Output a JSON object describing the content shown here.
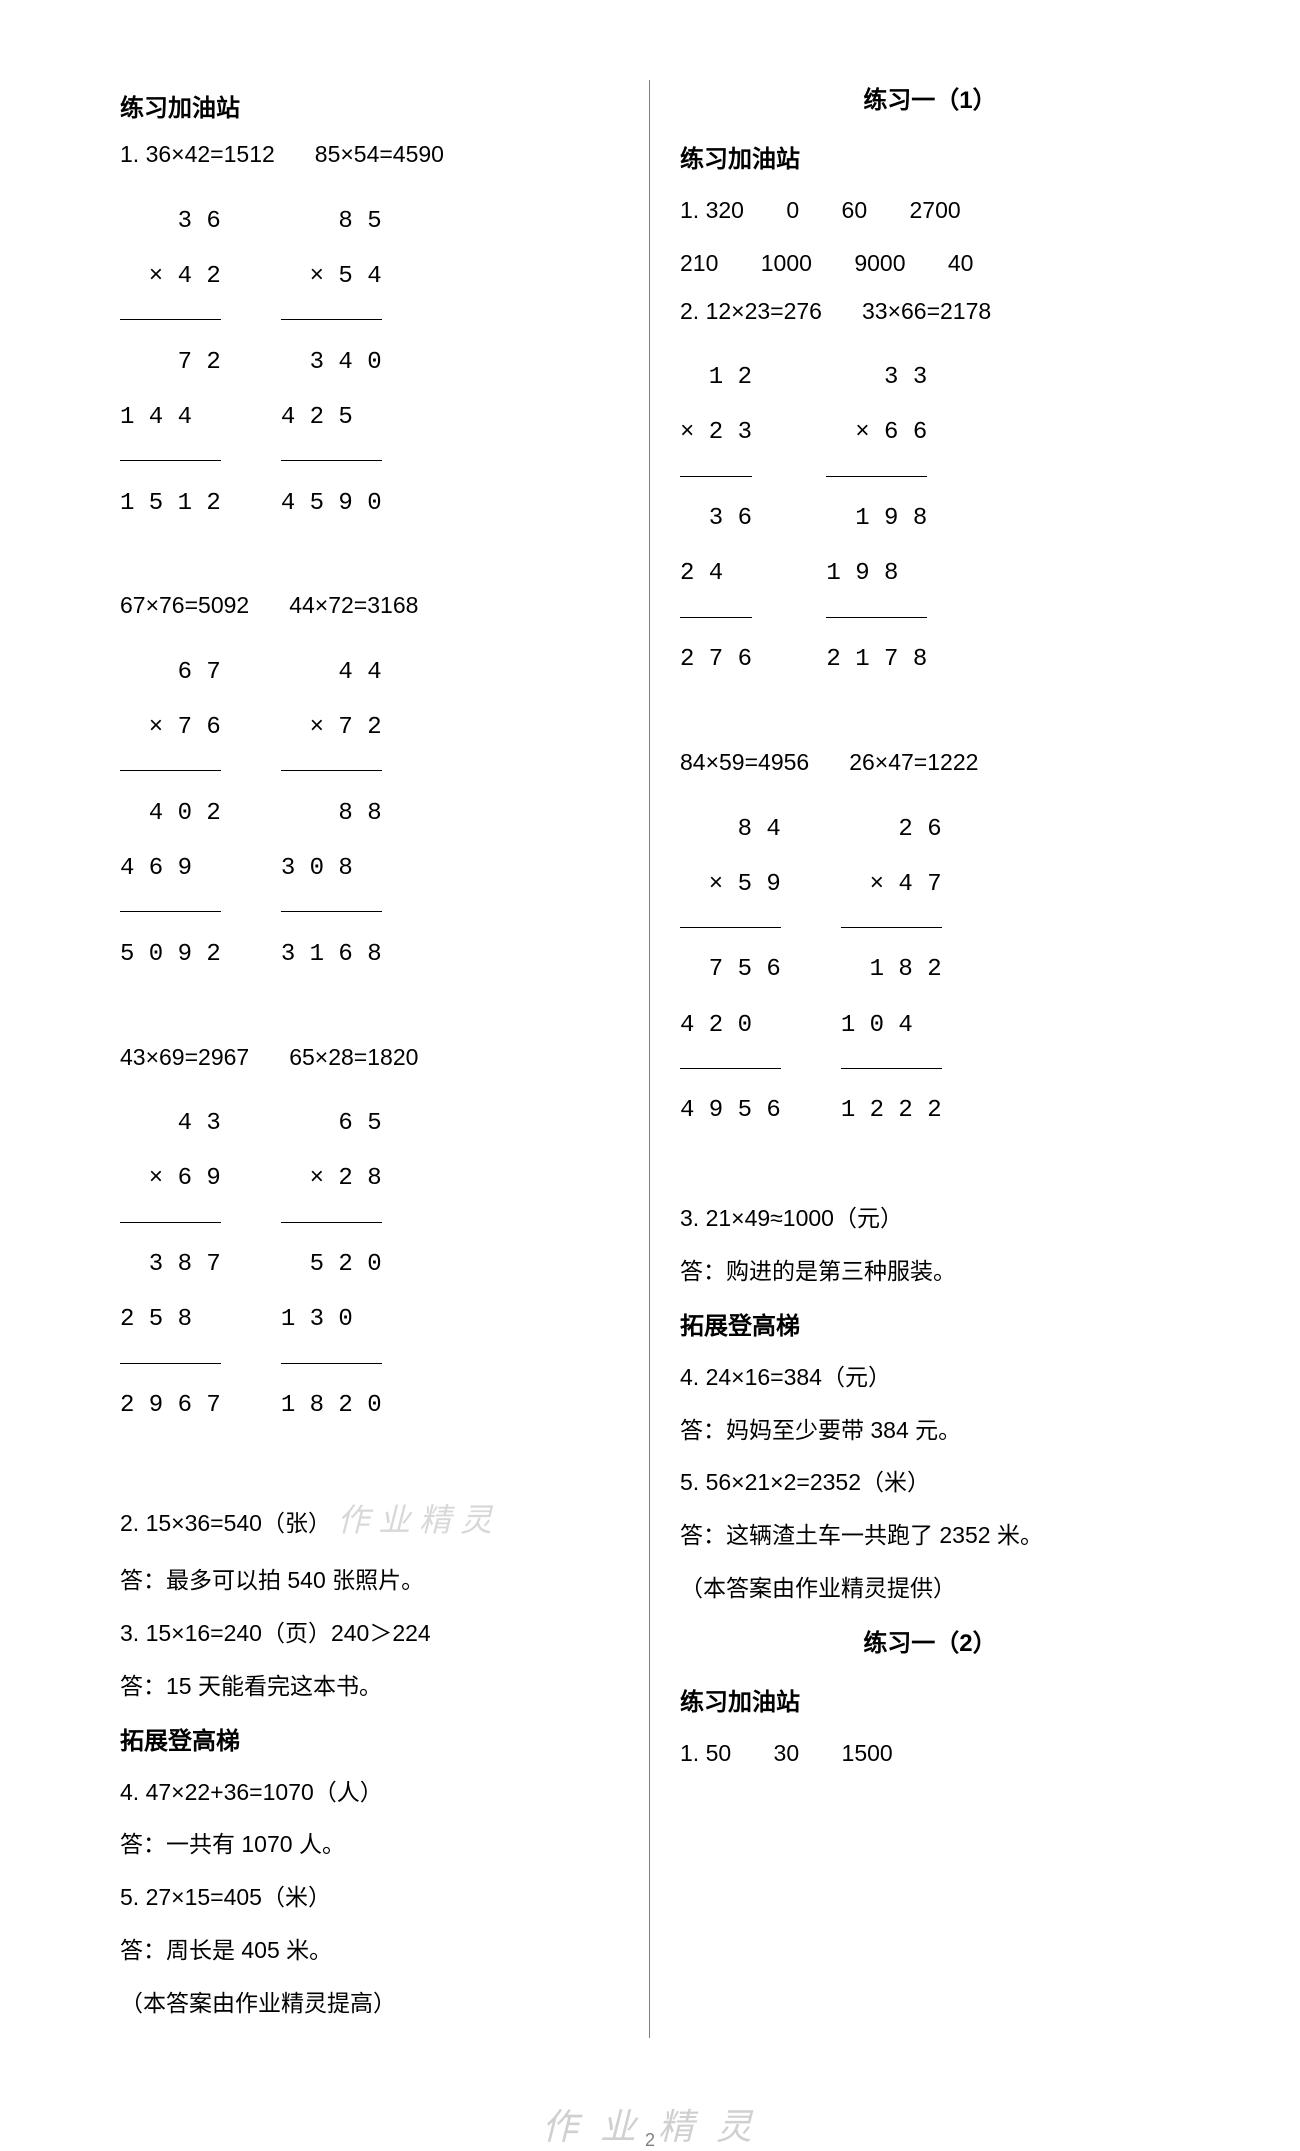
{
  "text_color": "#000000",
  "bg_color": "#ffffff",
  "divider_color": "#808080",
  "watermark_color": "#d0d0d0",
  "font_size_body": 23,
  "font_size_title": 24,
  "left": {
    "section1": "练习加油站",
    "q1_label": "1.",
    "eq1a": "36×42=1512",
    "eq1b": "85×54=4590",
    "mul1a": {
      "top": "3 6",
      "mult": "× 4 2",
      "p1": "7 2",
      "p2": "1 4 4",
      "res": "1 5 1 2"
    },
    "mul1b": {
      "top": "8 5",
      "mult": "× 5 4",
      "p1": "3 4 0",
      "p2": "4 2 5",
      "res": "4 5 9 0"
    },
    "eq2a": "67×76=5092",
    "eq2b": "44×72=3168",
    "mul2a": {
      "top": "6 7",
      "mult": "× 7 6",
      "p1": "4 0 2",
      "p2": "4 6 9",
      "res": "5 0 9 2"
    },
    "mul2b": {
      "top": "4 4",
      "mult": "× 7 2",
      "p1": "8 8",
      "p2": "3 0 8",
      "res": "3 1 6 8"
    },
    "eq3a": "43×69=2967",
    "eq3b": "65×28=1820",
    "mul3a": {
      "top": "4 3",
      "mult": "× 6 9",
      "p1": "3 8 7",
      "p2": "2 5 8",
      "res": "2 9 6 7"
    },
    "mul3b": {
      "top": "6 5",
      "mult": "× 2 8",
      "p1": "5 2 0",
      "p2": "1 3 0",
      "res": "1 8 2 0"
    },
    "q2": "2. 15×36=540（张）",
    "wm1": "作 业 精 灵",
    "a2": "答：最多可以拍 540 张照片。",
    "q3": "3. 15×16=240（页）240＞224",
    "a3": "答：15 天能看完这本书。",
    "section2": "拓展登高梯",
    "q4": "4. 47×22+36=1070（人）",
    "a4": "答：一共有 1070 人。",
    "q5": "5. 27×15=405（米）",
    "a5": "答：周长是 405 米。",
    "note": "（本答案由作业精灵提高）"
  },
  "right": {
    "title1": "练习一（1）",
    "section1": "练习加油站",
    "q1r1": [
      "1. 320",
      "0",
      "60",
      "2700"
    ],
    "q1r2": [
      "210",
      "1000",
      "9000",
      "40"
    ],
    "q2a": "2. 12×23=276",
    "q2b": "33×66=2178",
    "mul1a": {
      "top": "1 2",
      "mult": "× 2 3",
      "p1": "3 6",
      "p2": "2 4",
      "res": "2 7 6"
    },
    "mul1b": {
      "top": "3 3",
      "mult": "× 6 6",
      "p1": "1 9 8",
      "p2": "1 9 8",
      "res": "2 1 7 8"
    },
    "q2c": "84×59=4956",
    "q2d": "26×47=1222",
    "mul2a": {
      "top": "8 4",
      "mult": "× 5 9",
      "p1": "7 5 6",
      "p2": "4 2 0",
      "res": "4 9 5 6"
    },
    "mul2b": {
      "top": "2 6",
      "mult": "× 4 7",
      "p1": "1 8 2",
      "p2": "1 0 4",
      "res": "1 2 2 2"
    },
    "q3": "3. 21×49≈1000（元）",
    "a3": "答：购进的是第三种服装。",
    "section2": "拓展登高梯",
    "q4": "4. 24×16=384（元）",
    "a4": "答：妈妈至少要带 384 元。",
    "q5": "5. 56×21×2=2352（米）",
    "a5": "答：这辆渣土车一共跑了 2352 米。",
    "note": "（本答案由作业精灵提供）",
    "title2": "练习一（2）",
    "section3": "练习加油站",
    "q1b": [
      "1. 50",
      "30",
      "1500"
    ]
  },
  "footer_wm": "作 业 精 灵",
  "page_no": "2"
}
